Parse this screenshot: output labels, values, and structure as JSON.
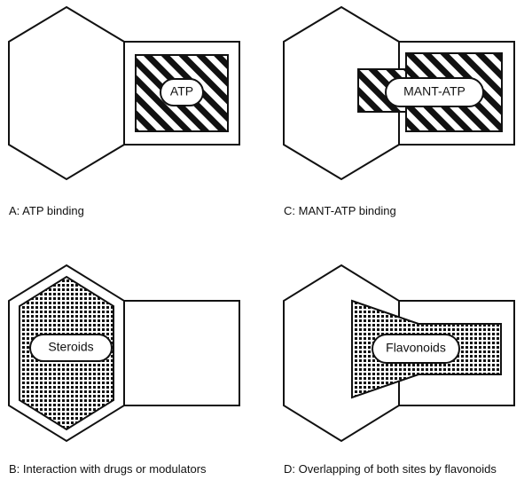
{
  "panels": [
    {
      "id": "A",
      "caption": "A: ATP binding",
      "pill": "ATP"
    },
    {
      "id": "C",
      "caption": "C: MANT-ATP binding",
      "pill": "MANT-ATP"
    },
    {
      "id": "B",
      "caption": "B: Interaction with drugs or modulators",
      "pill": "Steroids"
    },
    {
      "id": "D",
      "caption": "D: Overlapping of both sites by flavonoids",
      "pill": "Flavonoids"
    }
  ],
  "colors": {
    "ink": "#111111",
    "paper": "#ffffff"
  }
}
